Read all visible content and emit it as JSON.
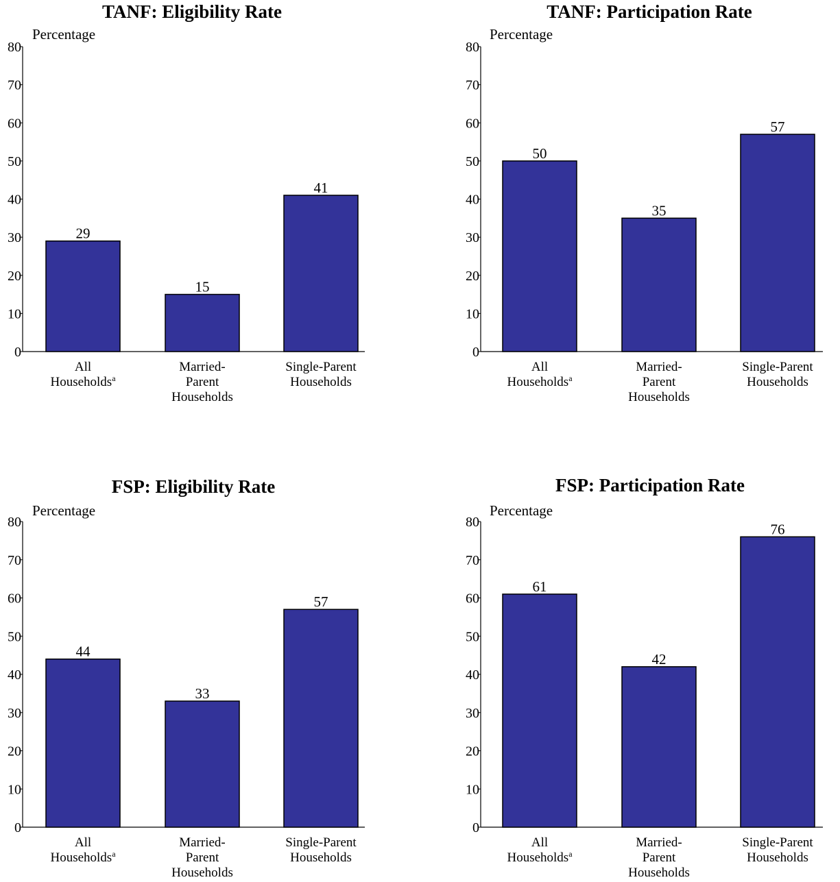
{
  "chart_data": [
    {
      "type": "bar",
      "title": "TANF:  Eligibility Rate",
      "ylabel": "Percentage",
      "ylim": [
        0,
        80
      ],
      "yticks": [
        0,
        10,
        20,
        30,
        40,
        50,
        60,
        70,
        80
      ],
      "grid": false,
      "categories": [
        {
          "lines": [
            "All",
            "Households"
          ],
          "footnote": "a"
        },
        {
          "lines": [
            "Married-",
            "Parent",
            "Households"
          ],
          "footnote": ""
        },
        {
          "lines": [
            "Single-Parent",
            "Households"
          ],
          "footnote": ""
        }
      ],
      "values": [
        29,
        15,
        41
      ],
      "color": "#333399"
    },
    {
      "type": "bar",
      "title": "TANF:  Participation Rate",
      "ylabel": "Percentage",
      "ylim": [
        0,
        80
      ],
      "yticks": [
        0,
        10,
        20,
        30,
        40,
        50,
        60,
        70,
        80
      ],
      "grid": false,
      "categories": [
        {
          "lines": [
            "All",
            "Households"
          ],
          "footnote": "a"
        },
        {
          "lines": [
            "Married-",
            "Parent",
            "Households"
          ],
          "footnote": ""
        },
        {
          "lines": [
            "Single-Parent",
            "Households"
          ],
          "footnote": ""
        }
      ],
      "values": [
        50,
        35,
        57
      ],
      "color": "#333399"
    },
    {
      "type": "bar",
      "title": "FSP:  Eligibility Rate",
      "ylabel": "Percentage",
      "ylim": [
        0,
        80
      ],
      "yticks": [
        0,
        10,
        20,
        30,
        40,
        50,
        60,
        70,
        80
      ],
      "grid": false,
      "categories": [
        {
          "lines": [
            "All",
            "Households"
          ],
          "footnote": "a"
        },
        {
          "lines": [
            "Married-",
            "Parent",
            "Households"
          ],
          "footnote": ""
        },
        {
          "lines": [
            "Single-Parent",
            "Households"
          ],
          "footnote": ""
        }
      ],
      "values": [
        44,
        33,
        57
      ],
      "color": "#333399"
    },
    {
      "type": "bar",
      "title": "FSP:  Participation Rate",
      "ylabel": "Percentage",
      "ylim": [
        0,
        80
      ],
      "yticks": [
        0,
        10,
        20,
        30,
        40,
        50,
        60,
        70,
        80
      ],
      "grid": false,
      "categories": [
        {
          "lines": [
            "All",
            "Households"
          ],
          "footnote": "a"
        },
        {
          "lines": [
            "Married-",
            "Parent",
            "Households"
          ],
          "footnote": ""
        },
        {
          "lines": [
            "Single-Parent",
            "Households"
          ],
          "footnote": ""
        }
      ],
      "values": [
        61,
        42,
        76
      ],
      "color": "#333399"
    }
  ]
}
